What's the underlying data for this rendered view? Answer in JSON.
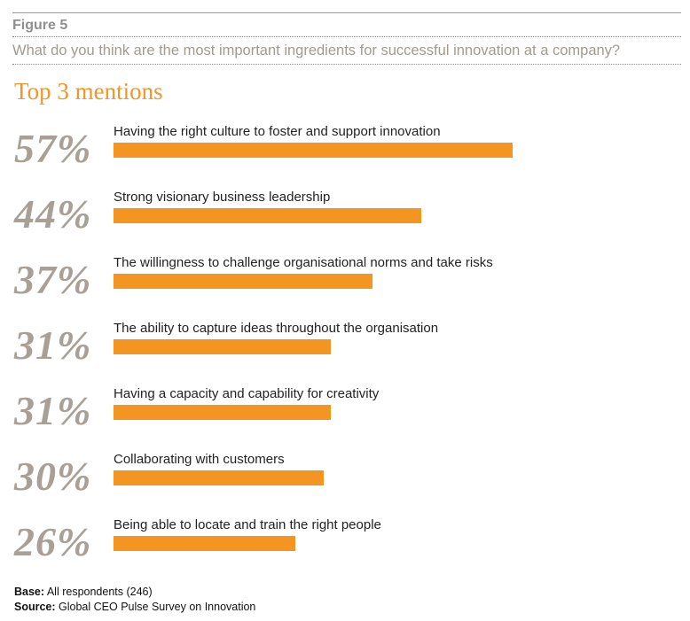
{
  "figure_label": "Figure 5",
  "question": "What do you think are the most important ingredients for successful innovation at a company?",
  "subtitle": "Top 3 mentions",
  "chart_data": {
    "type": "bar",
    "orientation": "horizontal",
    "categories": [
      "Having the right culture to foster and support innovation",
      "Strong visionary business leadership",
      "The willingness to challenge organisational norms and take risks",
      "The ability to capture ideas throughout the organisation",
      "Having a capacity and capability for creativity",
      "Collaborating with customers",
      "Being able to locate and train the right people"
    ],
    "values": [
      57,
      44,
      37,
      31,
      31,
      30,
      26
    ],
    "value_labels": [
      "57%",
      "44%",
      "37%",
      "31%",
      "31%",
      "30%",
      "26%"
    ],
    "unit": "%",
    "bar_color": "#f49521"
  },
  "footer": {
    "base_label": "Base:",
    "base_text": "All respondents (246)",
    "source_label": "Source:",
    "source_text": "Global CEO Pulse Survey on Innovation"
  },
  "colors": {
    "accent": "#f0962a",
    "percent_text": "#a8a096",
    "question_text": "#a19a90"
  }
}
